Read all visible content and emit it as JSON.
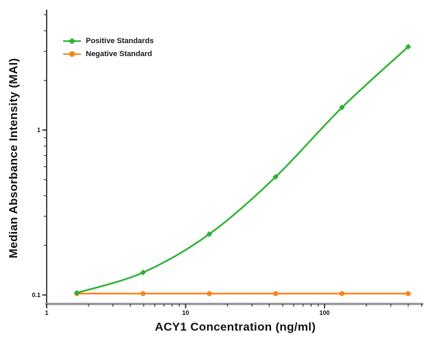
{
  "figure": {
    "background": "#ffffff"
  },
  "axis_style": {
    "x_axis_color": "#8b8b8b",
    "y_axis_color": "#4a4a4a",
    "tick_color": "#333333",
    "tick_label_color": "#111111"
  },
  "chart_data": {
    "type": "line",
    "title": "",
    "xlabel": "ACY1 Concentration (ng/ml)",
    "ylabel": "Median Absorbance Intensity (MAI)",
    "x_scale": "log",
    "y_scale": "log",
    "xlim": [
      1,
      514
    ],
    "ylim": [
      0.088,
      5.4
    ],
    "grid": false,
    "legend_position": "top-left",
    "x_ticks_labeled": [
      1,
      10,
      100
    ],
    "x_tick_label_strings": [
      "1",
      "10",
      "100"
    ],
    "y_ticks_labeled": [
      0.1,
      1
    ],
    "y_tick_label_strings": [
      "0.1",
      "1"
    ],
    "x": [
      1.65,
      4.94,
      14.81,
      44.44,
      133.33,
      400
    ],
    "series": [
      {
        "name": "Positive Standards",
        "color": "#2eb135",
        "marker": "diamond",
        "values": [
          0.103,
          0.137,
          0.234,
          0.52,
          1.37,
          3.2
        ]
      },
      {
        "name": "Negative Standard",
        "color": "#f5861f",
        "marker": "circle",
        "values": [
          0.102,
          0.102,
          0.102,
          0.102,
          0.102,
          0.102
        ]
      }
    ]
  }
}
